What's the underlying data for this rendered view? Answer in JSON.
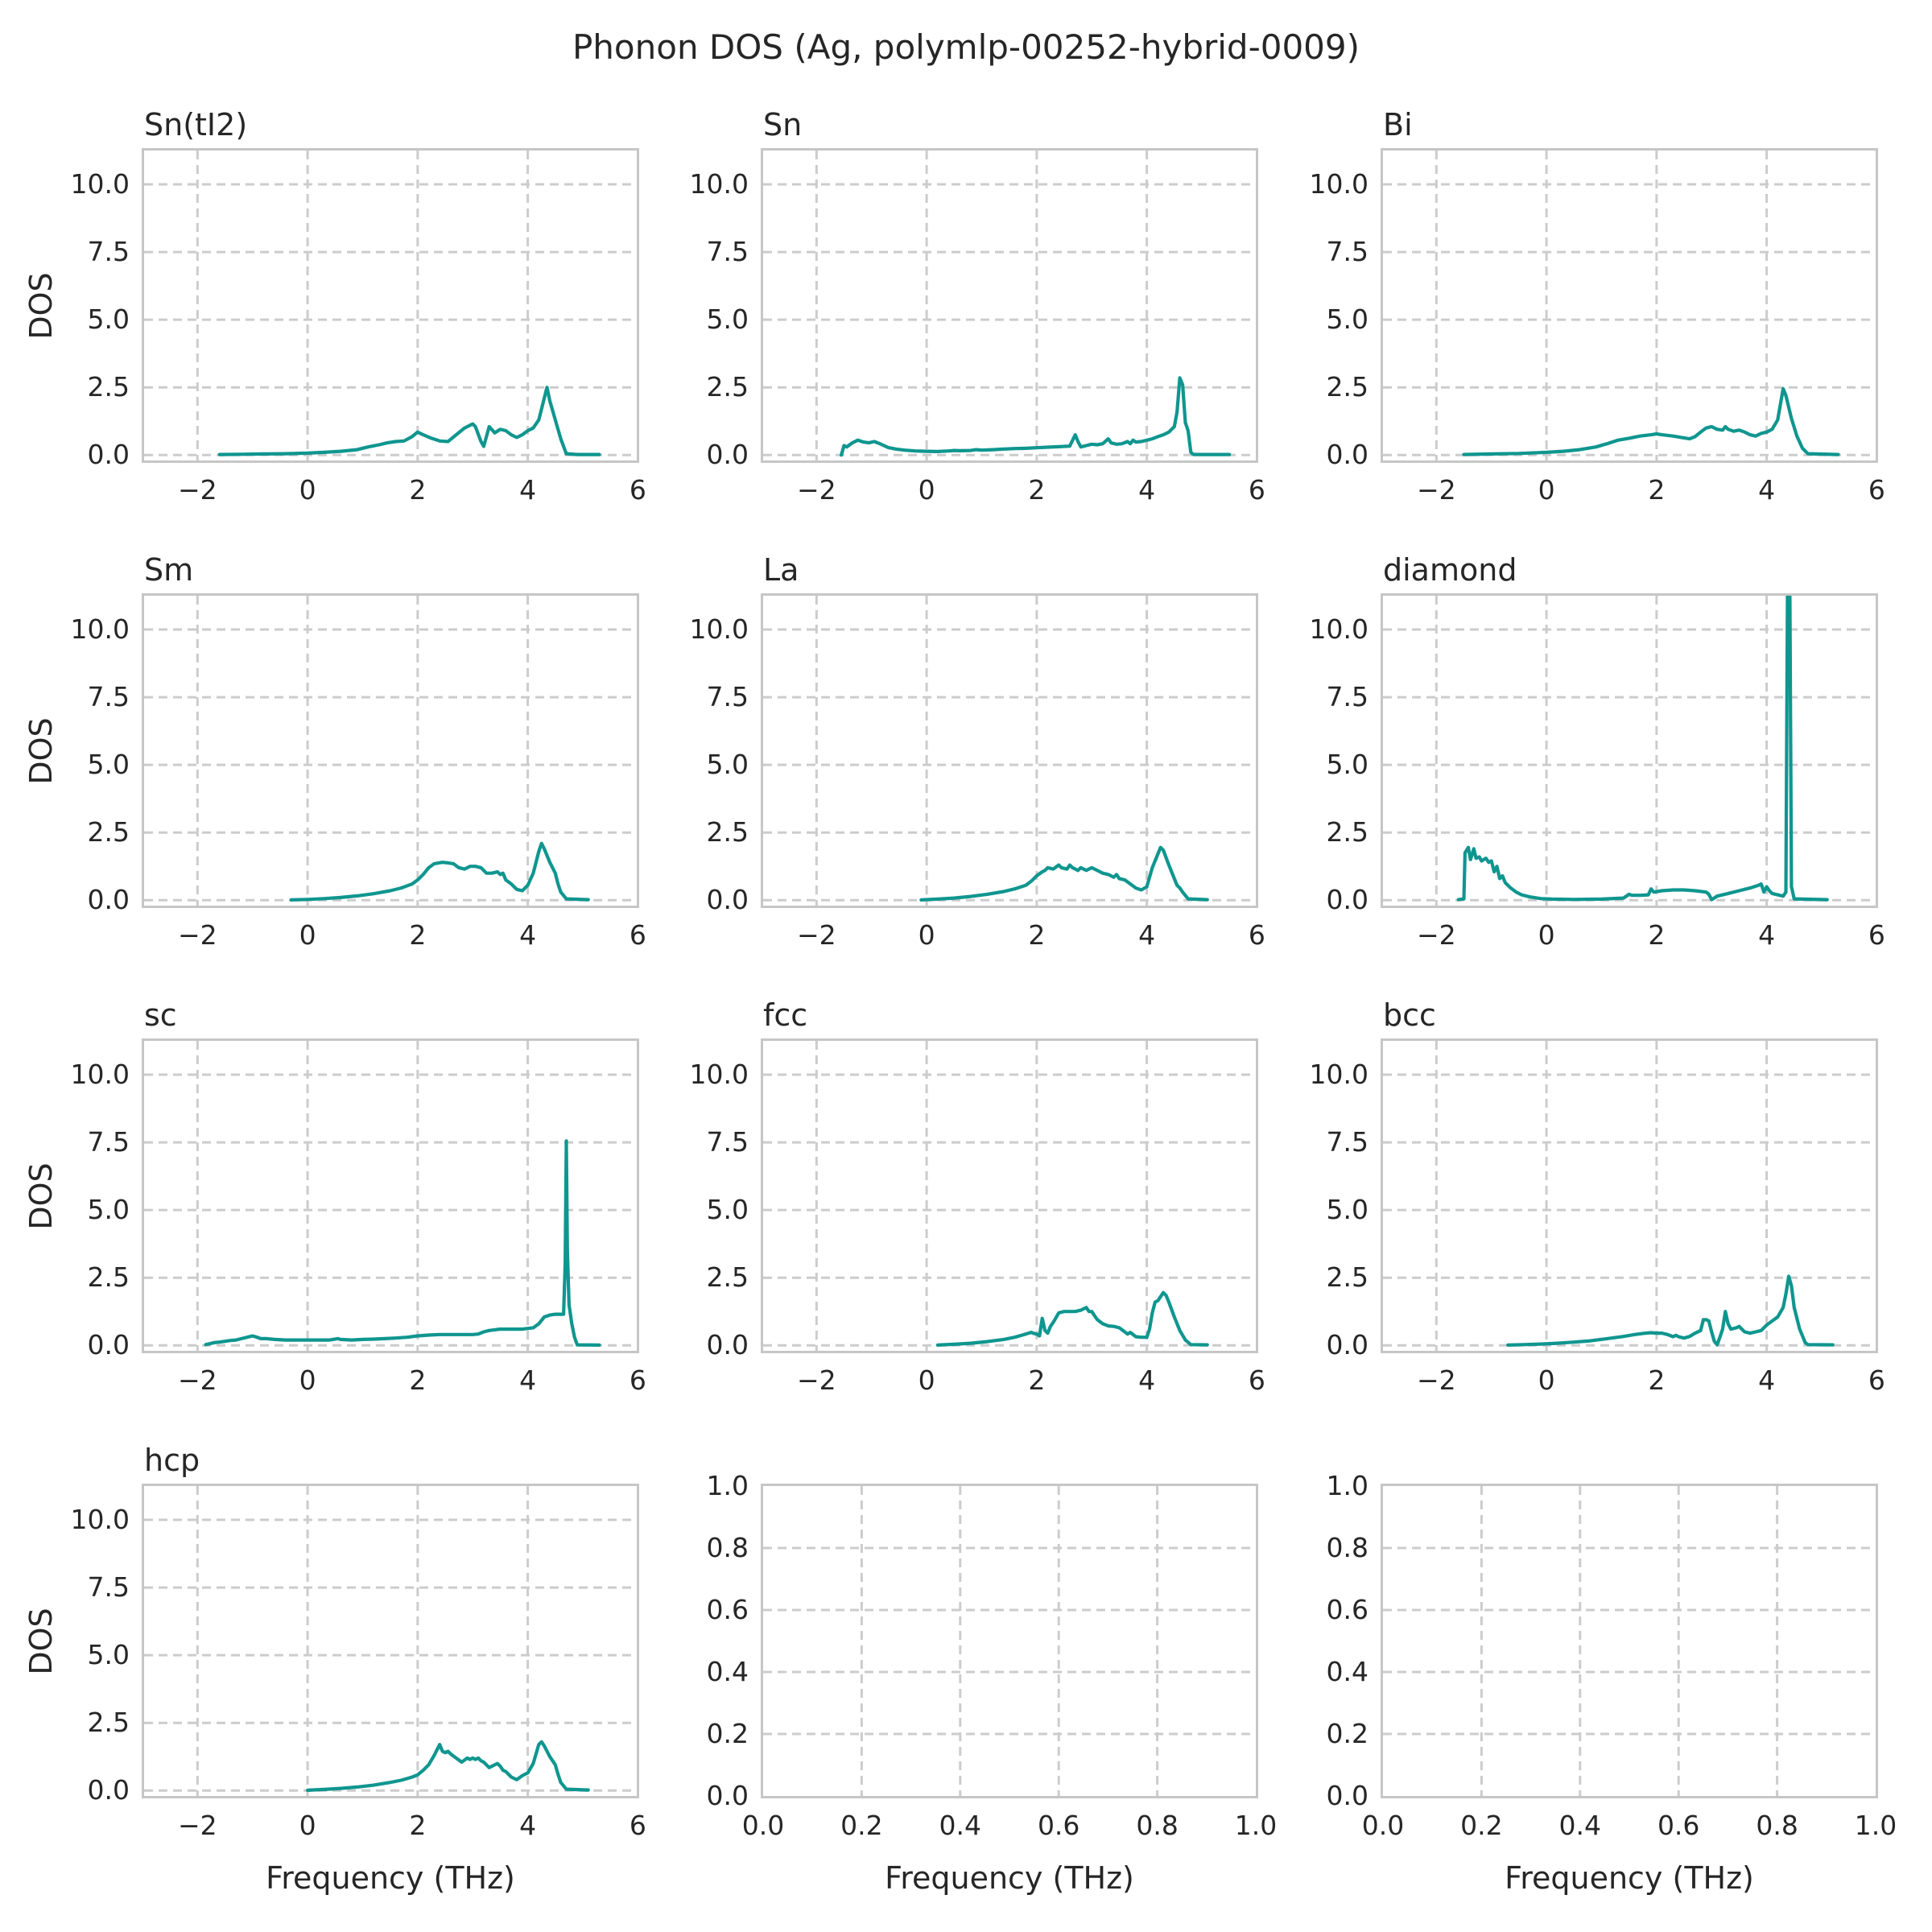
{
  "title": "Phonon DOS (Ag, polymlp-00252-hybrid-0009)",
  "colors": {
    "curve": "#0f968f",
    "grid": "#cccccc",
    "axis_border": "#c6c6c6",
    "text": "#262626",
    "background": "#ffffff"
  },
  "chart_data": {
    "type": "line",
    "grid": {
      "rows": 4,
      "cols": 3,
      "grid_on": true,
      "grid_style": "dashed"
    },
    "xlabel": "Frequency (THz)",
    "ylabel": "DOS",
    "legend": "none",
    "presets": {
      "dos": {
        "xlim": [
          -2.97,
          5.98
        ],
        "ylim": [
          -0.2,
          11.25
        ],
        "xticks": [
          -2,
          0,
          2,
          4,
          6
        ],
        "xtick_labels": [
          "−2",
          "0",
          "2",
          "4",
          "6"
        ],
        "yticks": [
          0,
          2.5,
          5,
          7.5,
          10
        ],
        "ytick_labels": [
          "0.0",
          "2.5",
          "5.0",
          "7.5",
          "10.0"
        ]
      },
      "empty": {
        "xlim": [
          0,
          1
        ],
        "ylim": [
          0,
          1
        ],
        "xticks": [
          0,
          0.2,
          0.4,
          0.6,
          0.8,
          1
        ],
        "xtick_labels": [
          "0.0",
          "0.2",
          "0.4",
          "0.6",
          "0.8",
          "1.0"
        ],
        "yticks": [
          0,
          0.2,
          0.4,
          0.6,
          0.8,
          1
        ],
        "ytick_labels": [
          "0.0",
          "0.2",
          "0.4",
          "0.6",
          "0.8",
          "1.0"
        ]
      }
    },
    "subplots": [
      {
        "title": "Sn(tI2)",
        "id": "sn-ti2",
        "preset": "dos",
        "x": [
          -1.6,
          -1.2,
          -0.8,
          -0.4,
          0,
          0.3,
          0.6,
          0.9,
          1.1,
          1.3,
          1.45,
          1.6,
          1.75,
          1.9,
          2.0,
          2.1,
          2.25,
          2.4,
          2.55,
          2.7,
          2.85,
          3.0,
          3.05,
          3.15,
          3.2,
          3.3,
          3.4,
          3.5,
          3.6,
          3.7,
          3.8,
          3.9,
          4.0,
          4.1,
          4.2,
          4.3,
          4.35,
          4.4,
          4.5,
          4.6,
          4.7,
          4.9,
          5.3
        ],
        "y": [
          0.02,
          0.03,
          0.04,
          0.05,
          0.07,
          0.1,
          0.14,
          0.2,
          0.3,
          0.38,
          0.45,
          0.5,
          0.52,
          0.68,
          0.85,
          0.75,
          0.62,
          0.52,
          0.5,
          0.75,
          1.0,
          1.15,
          1.05,
          0.5,
          0.32,
          1.05,
          0.82,
          0.95,
          0.9,
          0.75,
          0.65,
          0.75,
          0.9,
          1.0,
          1.3,
          2.1,
          2.5,
          2.0,
          1.3,
          0.6,
          0.05,
          0.02,
          0.02
        ]
      },
      {
        "title": "Sn",
        "id": "sn",
        "preset": "dos",
        "x": [
          -1.55,
          -1.5,
          -1.45,
          -1.35,
          -1.25,
          -1.15,
          -1.05,
          -0.95,
          -0.85,
          -0.7,
          -0.55,
          -0.4,
          -0.2,
          0,
          0.2,
          0.4,
          0.5,
          0.6,
          0.8,
          0.9,
          1.0,
          1.2,
          1.4,
          1.6,
          1.8,
          2.0,
          2.2,
          2.4,
          2.6,
          2.7,
          2.75,
          2.8,
          2.9,
          3.0,
          3.1,
          3.2,
          3.3,
          3.35,
          3.45,
          3.55,
          3.65,
          3.7,
          3.75,
          3.8,
          3.9,
          4.0,
          4.1,
          4.2,
          4.3,
          4.4,
          4.5,
          4.55,
          4.6,
          4.65,
          4.7,
          4.75,
          4.8,
          4.85,
          5.5
        ],
        "y": [
          0.0,
          0.35,
          0.3,
          0.45,
          0.55,
          0.48,
          0.45,
          0.5,
          0.42,
          0.28,
          0.22,
          0.18,
          0.15,
          0.14,
          0.13,
          0.15,
          0.17,
          0.16,
          0.17,
          0.2,
          0.18,
          0.2,
          0.22,
          0.24,
          0.25,
          0.27,
          0.29,
          0.31,
          0.33,
          0.75,
          0.5,
          0.3,
          0.35,
          0.4,
          0.38,
          0.42,
          0.6,
          0.45,
          0.4,
          0.42,
          0.5,
          0.42,
          0.55,
          0.48,
          0.5,
          0.55,
          0.6,
          0.68,
          0.75,
          0.85,
          1.05,
          1.6,
          2.85,
          2.6,
          1.2,
          0.9,
          0.1,
          0.02,
          0.02
        ]
      },
      {
        "title": "Bi",
        "id": "bi",
        "preset": "dos",
        "x": [
          -1.5,
          -1.0,
          -0.5,
          0,
          0.3,
          0.6,
          0.9,
          1.1,
          1.3,
          1.5,
          1.7,
          1.9,
          2.0,
          2.1,
          2.3,
          2.45,
          2.6,
          2.7,
          2.8,
          2.9,
          3.0,
          3.1,
          3.2,
          3.25,
          3.3,
          3.4,
          3.5,
          3.6,
          3.7,
          3.8,
          3.9,
          4.0,
          4.1,
          4.2,
          4.3,
          4.35,
          4.45,
          4.55,
          4.65,
          4.75,
          5.3
        ],
        "y": [
          0.02,
          0.04,
          0.06,
          0.1,
          0.14,
          0.2,
          0.3,
          0.42,
          0.55,
          0.62,
          0.7,
          0.75,
          0.78,
          0.75,
          0.7,
          0.65,
          0.6,
          0.68,
          0.85,
          1.0,
          1.05,
          0.95,
          0.92,
          1.05,
          0.95,
          0.88,
          0.92,
          0.85,
          0.75,
          0.7,
          0.8,
          0.85,
          0.95,
          1.3,
          2.45,
          2.2,
          1.35,
          0.7,
          0.25,
          0.05,
          0.02
        ]
      },
      {
        "title": "Sm",
        "id": "sm",
        "preset": "dos",
        "x": [
          -0.3,
          0,
          0.3,
          0.6,
          0.9,
          1.2,
          1.5,
          1.7,
          1.9,
          2.0,
          2.1,
          2.2,
          2.3,
          2.45,
          2.55,
          2.65,
          2.75,
          2.85,
          2.95,
          3.05,
          3.15,
          3.25,
          3.35,
          3.45,
          3.5,
          3.55,
          3.6,
          3.7,
          3.8,
          3.9,
          4.0,
          4.1,
          4.2,
          4.25,
          4.3,
          4.4,
          4.5,
          4.55,
          4.6,
          4.7,
          5.1
        ],
        "y": [
          0.01,
          0.03,
          0.06,
          0.1,
          0.16,
          0.24,
          0.35,
          0.45,
          0.6,
          0.75,
          0.95,
          1.2,
          1.35,
          1.4,
          1.38,
          1.35,
          1.2,
          1.15,
          1.25,
          1.25,
          1.2,
          1.0,
          1.0,
          1.05,
          0.95,
          1.0,
          0.75,
          0.6,
          0.4,
          0.35,
          0.55,
          1.0,
          1.8,
          2.1,
          1.9,
          1.4,
          1.0,
          0.6,
          0.3,
          0.05,
          0.02
        ]
      },
      {
        "title": "La",
        "id": "la",
        "preset": "dos",
        "x": [
          -0.1,
          0.2,
          0.5,
          0.8,
          1.1,
          1.4,
          1.6,
          1.8,
          1.9,
          2.0,
          2.1,
          2.15,
          2.2,
          2.3,
          2.4,
          2.45,
          2.55,
          2.6,
          2.65,
          2.75,
          2.8,
          2.9,
          3.0,
          3.1,
          3.2,
          3.3,
          3.4,
          3.45,
          3.5,
          3.6,
          3.7,
          3.8,
          3.9,
          4.0,
          4.1,
          4.2,
          4.25,
          4.3,
          4.4,
          4.5,
          4.55,
          4.6,
          4.65,
          4.75,
          5.1
        ],
        "y": [
          0.01,
          0.04,
          0.08,
          0.14,
          0.22,
          0.32,
          0.42,
          0.55,
          0.7,
          0.9,
          1.05,
          1.1,
          1.2,
          1.15,
          1.3,
          1.2,
          1.15,
          1.3,
          1.2,
          1.1,
          1.2,
          1.1,
          1.2,
          1.1,
          1.0,
          0.95,
          0.85,
          0.95,
          0.8,
          0.75,
          0.6,
          0.45,
          0.38,
          0.5,
          1.2,
          1.7,
          1.95,
          1.85,
          1.3,
          0.8,
          0.55,
          0.45,
          0.3,
          0.05,
          0.02
        ]
      },
      {
        "title": "diamond",
        "id": "diamond",
        "preset": "dos",
        "x": [
          -1.6,
          -1.5,
          -1.48,
          -1.42,
          -1.38,
          -1.32,
          -1.28,
          -1.22,
          -1.18,
          -1.1,
          -1.05,
          -1.0,
          -0.95,
          -0.9,
          -0.85,
          -0.8,
          -0.75,
          -0.65,
          -0.55,
          -0.45,
          -0.3,
          -0.1,
          0.1,
          0.5,
          1.0,
          1.4,
          1.5,
          1.55,
          1.7,
          1.85,
          1.9,
          1.95,
          2.1,
          2.3,
          2.5,
          2.7,
          2.9,
          2.95,
          3.0,
          3.1,
          3.3,
          3.5,
          3.7,
          3.85,
          3.9,
          3.95,
          4.0,
          4.05,
          4.1,
          4.2,
          4.3,
          4.35,
          4.38,
          4.42,
          4.45,
          4.5,
          5.1
        ],
        "y": [
          0.02,
          0.05,
          1.75,
          1.95,
          1.5,
          1.9,
          1.55,
          1.6,
          1.45,
          1.55,
          1.4,
          1.45,
          1.05,
          1.25,
          0.8,
          0.9,
          0.65,
          0.45,
          0.3,
          0.2,
          0.12,
          0.06,
          0.04,
          0.03,
          0.04,
          0.08,
          0.22,
          0.18,
          0.18,
          0.2,
          0.42,
          0.3,
          0.35,
          0.38,
          0.38,
          0.35,
          0.3,
          0.22,
          0.02,
          0.15,
          0.25,
          0.35,
          0.45,
          0.55,
          0.6,
          0.3,
          0.5,
          0.35,
          0.25,
          0.2,
          0.15,
          0.3,
          12,
          12,
          0.5,
          0.05,
          0.02
        ]
      },
      {
        "title": "sc",
        "id": "sc",
        "preset": "dos",
        "x": [
          -1.85,
          -1.7,
          -1.6,
          -1.5,
          -1.4,
          -1.3,
          -1.2,
          -1.1,
          -1.0,
          -0.95,
          -0.85,
          -0.75,
          -0.6,
          -0.4,
          -0.2,
          0,
          0.2,
          0.4,
          0.55,
          0.6,
          0.8,
          1.0,
          1.2,
          1.4,
          1.6,
          1.8,
          2.0,
          2.2,
          2.4,
          2.6,
          2.8,
          3.0,
          3.1,
          3.2,
          3.3,
          3.5,
          3.7,
          3.9,
          4.1,
          4.2,
          4.3,
          4.4,
          4.5,
          4.6,
          4.65,
          4.68,
          4.7,
          4.72,
          4.75,
          4.8,
          4.85,
          4.9,
          5.3
        ],
        "y": [
          0.03,
          0.1,
          0.12,
          0.15,
          0.18,
          0.2,
          0.25,
          0.3,
          0.35,
          0.32,
          0.25,
          0.25,
          0.22,
          0.2,
          0.2,
          0.2,
          0.2,
          0.2,
          0.25,
          0.22,
          0.2,
          0.22,
          0.23,
          0.25,
          0.27,
          0.3,
          0.35,
          0.38,
          0.4,
          0.4,
          0.4,
          0.4,
          0.42,
          0.5,
          0.55,
          0.6,
          0.6,
          0.6,
          0.65,
          0.8,
          1.05,
          1.12,
          1.15,
          1.15,
          1.15,
          3.0,
          7.55,
          3.5,
          1.5,
          0.8,
          0.3,
          0.02,
          0.01
        ]
      },
      {
        "title": "fcc",
        "id": "fcc",
        "preset": "dos",
        "x": [
          0.2,
          0.5,
          0.8,
          1.1,
          1.4,
          1.6,
          1.8,
          1.9,
          1.95,
          2.0,
          2.05,
          2.1,
          2.15,
          2.2,
          2.25,
          2.3,
          2.4,
          2.5,
          2.6,
          2.7,
          2.8,
          2.9,
          2.95,
          3.0,
          3.05,
          3.1,
          3.2,
          3.3,
          3.4,
          3.5,
          3.6,
          3.65,
          3.7,
          3.75,
          3.8,
          3.9,
          4.0,
          4.05,
          4.1,
          4.15,
          4.2,
          4.25,
          4.3,
          4.35,
          4.4,
          4.5,
          4.6,
          4.7,
          4.8,
          5.1
        ],
        "y": [
          0.01,
          0.04,
          0.08,
          0.14,
          0.22,
          0.3,
          0.42,
          0.48,
          0.44,
          0.42,
          0.35,
          1.0,
          0.55,
          0.45,
          0.7,
          0.85,
          1.2,
          1.25,
          1.25,
          1.25,
          1.3,
          1.4,
          1.25,
          1.25,
          1.1,
          0.95,
          0.8,
          0.72,
          0.7,
          0.65,
          0.5,
          0.42,
          0.48,
          0.4,
          0.32,
          0.3,
          0.3,
          0.6,
          1.2,
          1.6,
          1.65,
          1.8,
          1.95,
          1.85,
          1.6,
          1.05,
          0.55,
          0.2,
          0.03,
          0.02
        ]
      },
      {
        "title": "bcc",
        "id": "bcc",
        "preset": "dos",
        "x": [
          -0.7,
          -0.4,
          -0.1,
          0.2,
          0.5,
          0.8,
          1.1,
          1.4,
          1.6,
          1.8,
          1.9,
          2.0,
          2.1,
          2.2,
          2.3,
          2.35,
          2.4,
          2.5,
          2.6,
          2.7,
          2.8,
          2.85,
          2.9,
          2.95,
          3.0,
          3.05,
          3.1,
          3.15,
          3.2,
          3.25,
          3.3,
          3.35,
          3.45,
          3.5,
          3.55,
          3.6,
          3.7,
          3.8,
          3.9,
          4.0,
          4.1,
          4.2,
          4.3,
          4.35,
          4.4,
          4.45,
          4.5,
          4.55,
          4.6,
          4.65,
          4.7,
          4.75,
          5.2
        ],
        "y": [
          0.01,
          0.03,
          0.05,
          0.08,
          0.12,
          0.17,
          0.25,
          0.33,
          0.4,
          0.45,
          0.47,
          0.45,
          0.45,
          0.4,
          0.32,
          0.37,
          0.32,
          0.27,
          0.33,
          0.45,
          0.55,
          0.95,
          0.95,
          0.9,
          0.5,
          0.15,
          0.02,
          0.3,
          0.6,
          1.25,
          0.8,
          0.6,
          0.65,
          0.7,
          0.6,
          0.5,
          0.45,
          0.5,
          0.55,
          0.75,
          0.9,
          1.05,
          1.4,
          1.9,
          2.55,
          2.2,
          1.4,
          1.0,
          0.6,
          0.35,
          0.1,
          0.03,
          0.02
        ]
      },
      {
        "title": "hcp",
        "id": "hcp",
        "preset": "dos",
        "x": [
          0,
          0.3,
          0.6,
          0.9,
          1.2,
          1.5,
          1.7,
          1.9,
          2.0,
          2.1,
          2.2,
          2.3,
          2.35,
          2.4,
          2.45,
          2.5,
          2.55,
          2.6,
          2.7,
          2.8,
          2.9,
          2.95,
          3.0,
          3.05,
          3.1,
          3.15,
          3.2,
          3.3,
          3.4,
          3.45,
          3.5,
          3.55,
          3.6,
          3.7,
          3.75,
          3.8,
          3.9,
          4.0,
          4.1,
          4.2,
          4.25,
          4.3,
          4.4,
          4.5,
          4.55,
          4.6,
          4.7,
          5.1
        ],
        "y": [
          0.01,
          0.04,
          0.08,
          0.13,
          0.2,
          0.3,
          0.38,
          0.5,
          0.58,
          0.75,
          0.95,
          1.3,
          1.5,
          1.7,
          1.45,
          1.4,
          1.45,
          1.35,
          1.2,
          1.05,
          1.2,
          1.15,
          1.2,
          1.15,
          1.2,
          1.1,
          1.05,
          0.85,
          0.95,
          1.0,
          0.9,
          0.75,
          0.7,
          0.5,
          0.45,
          0.4,
          0.55,
          0.65,
          1.0,
          1.7,
          1.8,
          1.65,
          1.25,
          0.95,
          0.6,
          0.3,
          0.05,
          0.02
        ]
      },
      {
        "title": "",
        "id": "empty-1",
        "preset": "empty",
        "x": [],
        "y": []
      },
      {
        "title": "",
        "id": "empty-2",
        "preset": "empty",
        "x": [],
        "y": []
      }
    ]
  }
}
